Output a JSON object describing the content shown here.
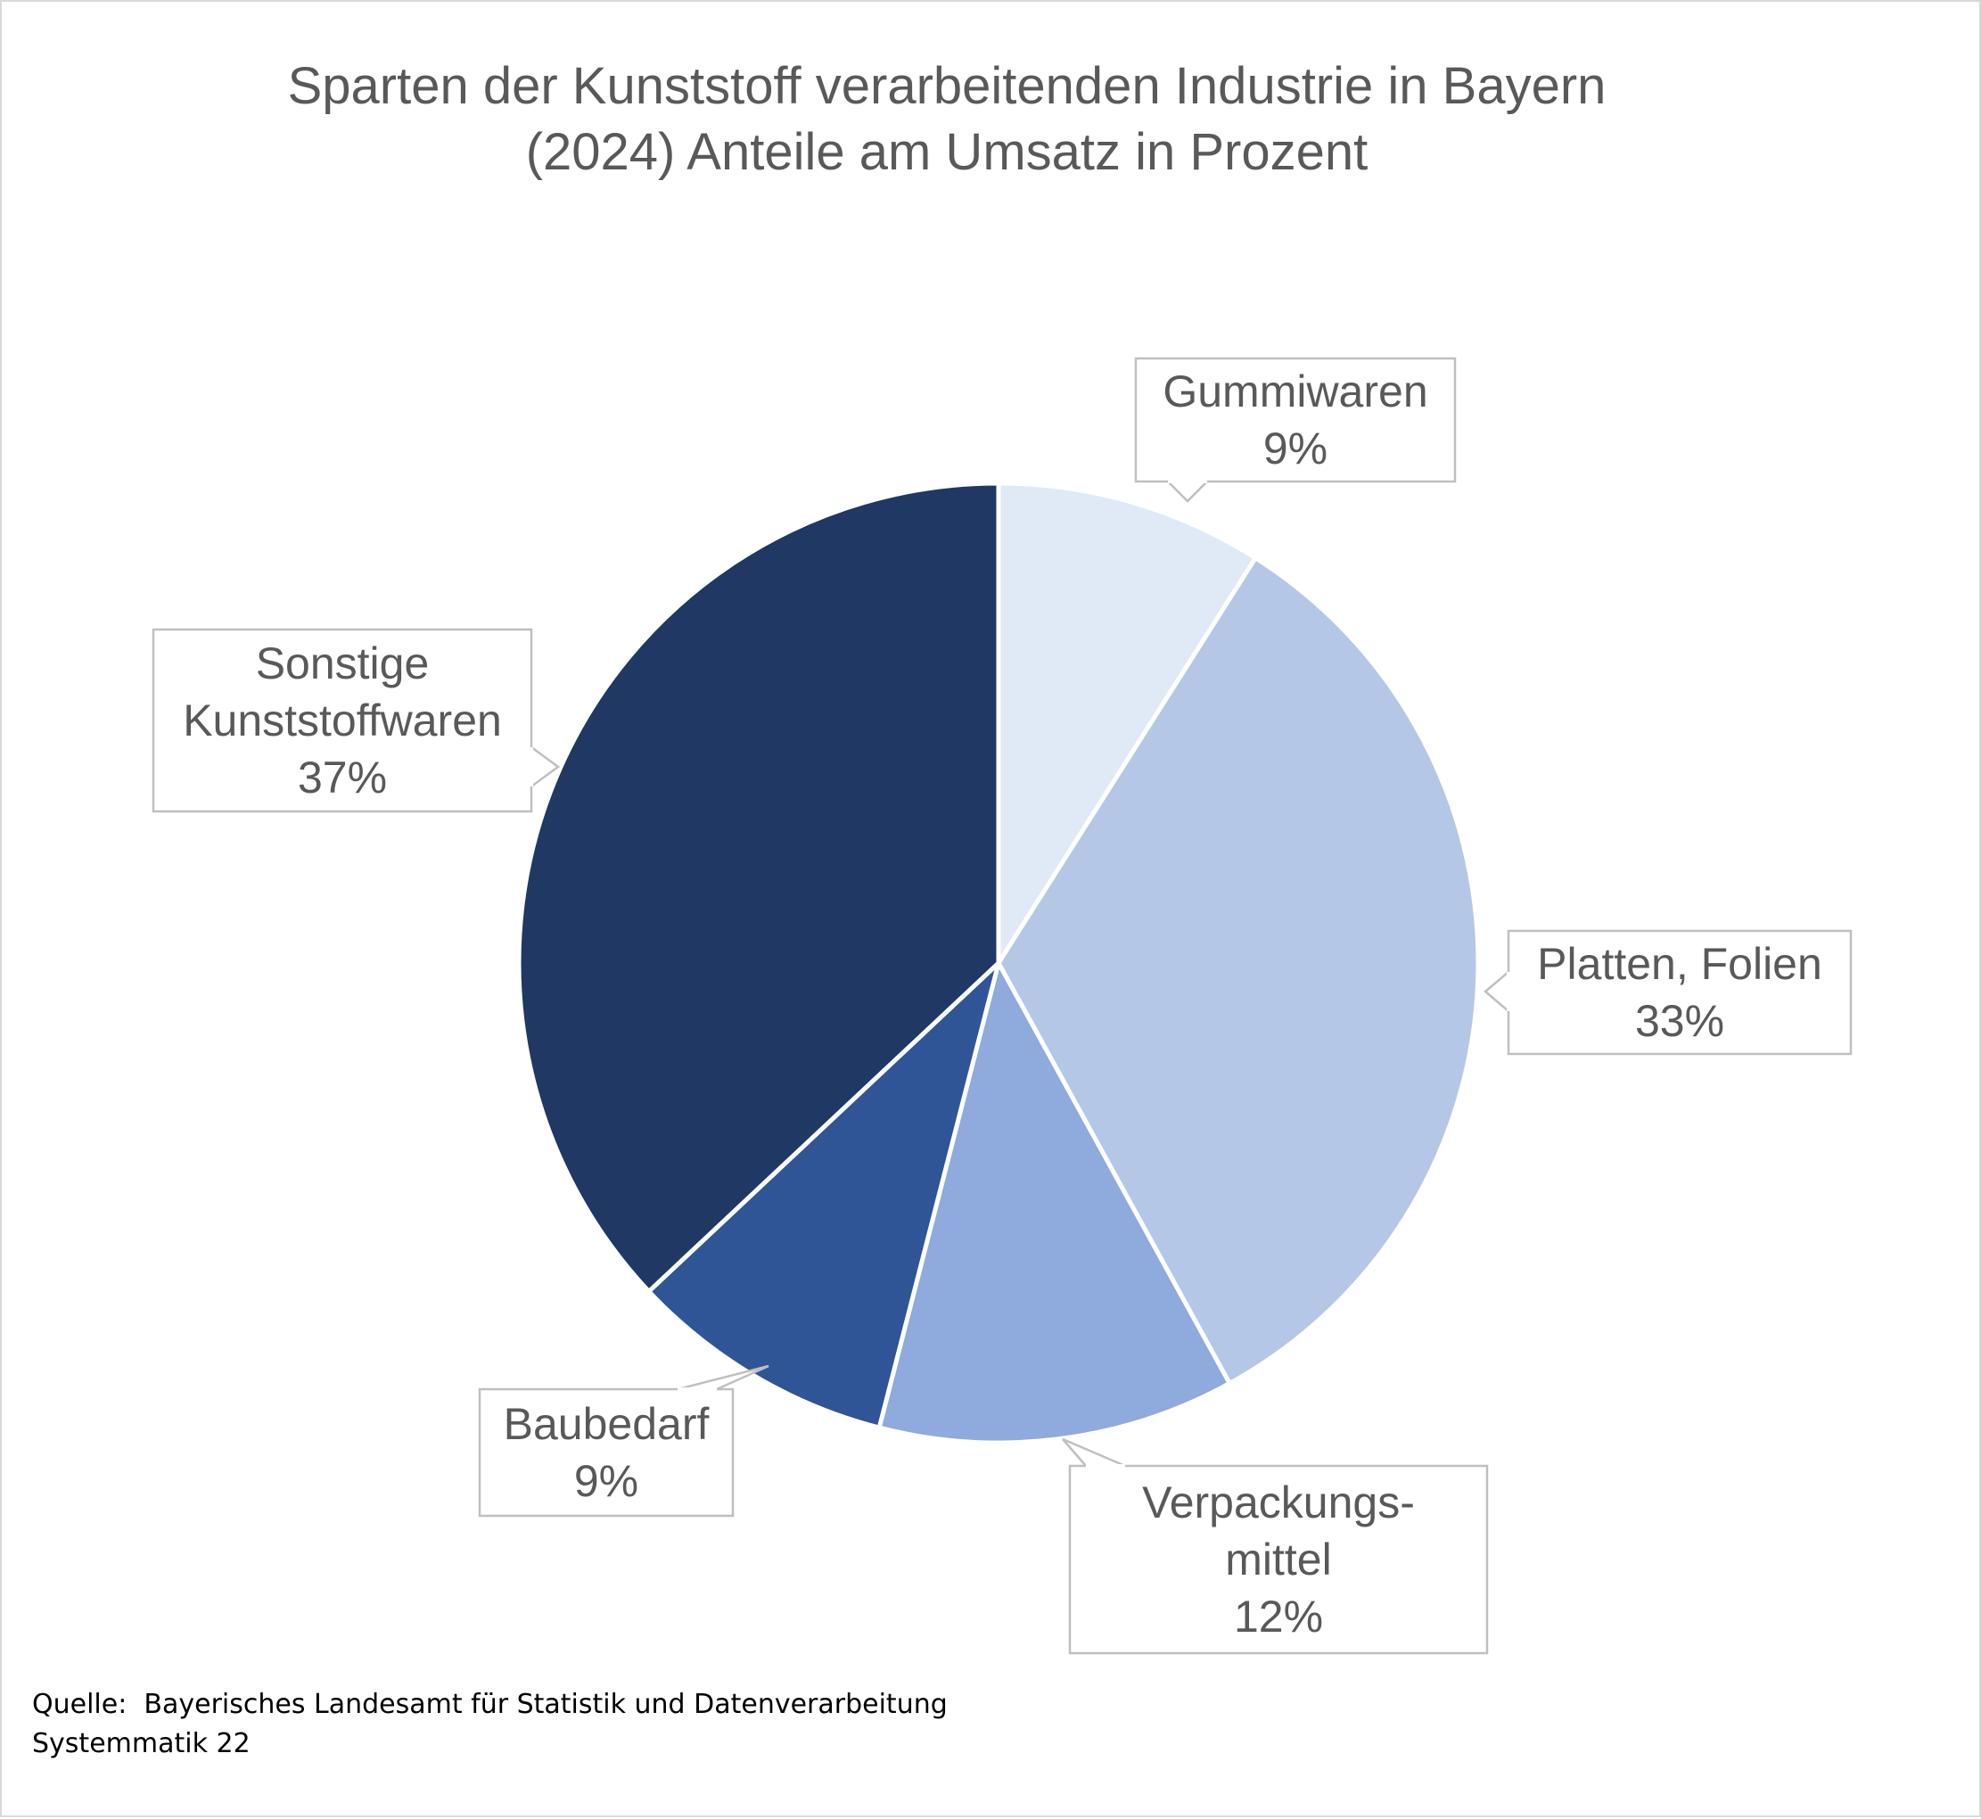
{
  "chart_data": {
    "type": "pie",
    "title_lines": [
      "Sparten der Kunststoff verarbeitenden Industrie in Bayern",
      "(2024) Anteile am Umsatz in Prozent"
    ],
    "slices": [
      {
        "label_lines": [
          "Gummiwaren"
        ],
        "value": 9,
        "value_label": "9%",
        "color": "#dfeaf6"
      },
      {
        "label_lines": [
          "Platten, Folien"
        ],
        "value": 33,
        "value_label": "33%",
        "color": "#b4c7e7"
      },
      {
        "label_lines": [
          "Verpackungs-",
          "mittel"
        ],
        "value": 12,
        "value_label": "12%",
        "color": "#8faadc"
      },
      {
        "label_lines": [
          "Baubedarf"
        ],
        "value": 9,
        "value_label": "9%",
        "color": "#2f5597"
      },
      {
        "label_lines": [
          "Sonstige",
          "Kunststoffwaren"
        ],
        "value": 37,
        "value_label": "37%",
        "color": "#203864"
      }
    ],
    "start_angle": "12 o'clock",
    "direction": "clockwise",
    "legend": "none",
    "data_labels": "callouts"
  },
  "footer": {
    "source": "Quelle:  Bayerisches Landesamt für Statistik und Datenverarbeitung",
    "note": "Systemmatik 22"
  }
}
